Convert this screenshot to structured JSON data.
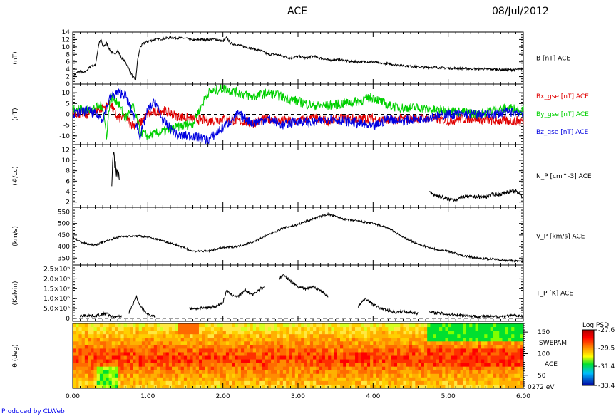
{
  "header": {
    "title": "ACE",
    "date": "08/Jul/2012"
  },
  "footer": {
    "credit": "Produced by CLWeb"
  },
  "chart_data": [
    {
      "type": "line",
      "panel": "B",
      "ylabel": "(nT)",
      "ylim": [
        0,
        14
      ],
      "yticks": [
        "0",
        "2",
        "4",
        "6",
        "8",
        "10",
        "12",
        "14"
      ],
      "xlim": [
        0,
        6
      ],
      "dashed_zero": true,
      "series": [
        {
          "name": "B [nT] ACE",
          "color": "#000000",
          "x": [
            0,
            0.05,
            0.1,
            0.15,
            0.2,
            0.25,
            0.3,
            0.35,
            0.38,
            0.4,
            0.45,
            0.5,
            0.55,
            0.6,
            0.65,
            0.7,
            0.75,
            0.8,
            0.84,
            0.86,
            0.9,
            0.95,
            1.0,
            1.1,
            1.2,
            1.3,
            1.4,
            1.5,
            1.6,
            1.7,
            1.8,
            1.9,
            2.0,
            2.05,
            2.1,
            2.2,
            2.3,
            2.4,
            2.5,
            2.6,
            2.7,
            2.8,
            2.9,
            3.0,
            3.1,
            3.2,
            3.3,
            3.4,
            3.5,
            3.6,
            3.7,
            3.8,
            3.9,
            4.0,
            4.1,
            4.2,
            4.3,
            4.4,
            4.5,
            4.6,
            4.7,
            4.8,
            4.9,
            5.0,
            5.2,
            5.4,
            5.6,
            5.8,
            5.9,
            6.0
          ],
          "y": [
            2,
            3,
            3.5,
            3,
            4,
            5,
            5,
            11,
            12,
            10,
            11,
            9,
            8,
            9,
            7,
            6,
            4,
            2,
            1,
            6,
            10,
            11,
            11.5,
            12,
            12.2,
            12.5,
            12.4,
            12.3,
            11.8,
            12,
            11.9,
            12.1,
            11.5,
            12.5,
            11,
            10.5,
            10,
            9.5,
            9,
            8,
            8,
            7.5,
            7,
            7.5,
            7,
            7.5,
            7,
            6.5,
            6.5,
            6.5,
            6,
            6,
            6,
            6,
            5.5,
            5.5,
            5.2,
            5,
            4.8,
            4.6,
            4.5,
            4.5,
            4.4,
            4.3,
            4.2,
            4.1,
            4,
            3.8,
            3.9,
            4.2
          ]
        }
      ]
    },
    {
      "type": "line",
      "panel": "B components",
      "ylabel": "(nT)",
      "ylim": [
        -14,
        14
      ],
      "yticks": [
        "-10",
        "-5",
        "0",
        "5",
        "10"
      ],
      "xlim": [
        0,
        6
      ],
      "dashed_zero": true,
      "series": [
        {
          "name": "Bx_gse [nT] ACE",
          "color": "#e00000",
          "x": [
            0,
            0.2,
            0.4,
            0.5,
            0.6,
            0.7,
            0.8,
            0.9,
            1.0,
            1.2,
            1.4,
            1.6,
            1.8,
            2.0,
            2.2,
            2.4,
            2.6,
            2.8,
            3.0,
            3.2,
            3.4,
            3.6,
            3.8,
            4.0,
            4.2,
            4.4,
            4.6,
            4.8,
            5.0,
            5.2,
            5.4,
            5.6,
            5.8,
            6.0
          ],
          "y": [
            1,
            0,
            3,
            5,
            -2,
            -1,
            -5,
            -4,
            0,
            2,
            -1,
            -2,
            -3,
            -2,
            -3,
            -4,
            -2,
            -3,
            -3,
            -2,
            -3,
            -2,
            -2,
            -2,
            -3,
            -2,
            -2,
            -2,
            -3,
            -2,
            -2,
            -3,
            -3,
            -3
          ]
        },
        {
          "name": "By_gse [nT] ACE",
          "color": "#00d000",
          "x": [
            0,
            0.2,
            0.4,
            0.45,
            0.5,
            0.6,
            0.7,
            0.8,
            0.9,
            1.0,
            1.2,
            1.4,
            1.6,
            1.8,
            2.0,
            2.2,
            2.4,
            2.6,
            2.8,
            3.0,
            3.2,
            3.4,
            3.6,
            3.8,
            4.0,
            4.2,
            4.4,
            4.6,
            4.8,
            5.0,
            5.2,
            5.4,
            5.6,
            5.8,
            6.0
          ],
          "y": [
            3,
            2,
            4,
            -10,
            8,
            6,
            -2,
            4,
            -8,
            -10,
            -8,
            -6,
            -4,
            10,
            12,
            10,
            8,
            10,
            8,
            6,
            4,
            4,
            5,
            6,
            8,
            4,
            3,
            3,
            2,
            2,
            1,
            0,
            2,
            3,
            2
          ]
        },
        {
          "name": "Bz_gse [nT] ACE",
          "color": "#0000e0",
          "x": [
            0,
            0.2,
            0.4,
            0.5,
            0.6,
            0.7,
            0.8,
            0.9,
            1.0,
            1.1,
            1.2,
            1.4,
            1.6,
            1.8,
            2.0,
            2.2,
            2.4,
            2.6,
            2.8,
            3.0,
            3.2,
            3.4,
            3.6,
            3.8,
            4.0,
            4.2,
            4.4,
            4.6,
            4.8,
            5.0,
            5.2,
            5.4,
            5.6,
            5.8,
            6.0
          ],
          "y": [
            0,
            2,
            -2,
            8,
            10,
            9,
            0,
            -10,
            2,
            6,
            -3,
            -10,
            -10,
            -12,
            -6,
            0,
            -4,
            -2,
            -5,
            -3,
            -4,
            -2,
            -3,
            -4,
            -6,
            -2,
            -3,
            -2,
            -1,
            0,
            0,
            0,
            0,
            1,
            1
          ]
        }
      ]
    },
    {
      "type": "line",
      "panel": "N_P",
      "ylabel": "(#/cc)",
      "ylim": [
        1,
        13
      ],
      "yticks": [
        "2",
        "4",
        "6",
        "8",
        "10",
        "12"
      ],
      "xlim": [
        0,
        6
      ],
      "dashed_zero": false,
      "series": [
        {
          "name": "N_P [cm^-3] ACE",
          "color": "#000000",
          "segments": [
            {
              "x": [
                0.52,
                0.53,
                0.54,
                0.55,
                0.56,
                0.57,
                0.58,
                0.59,
                0.6,
                0.61,
                0.62
              ],
              "y": [
                5,
                9,
                11,
                12,
                8,
                10,
                7,
                9,
                6,
                8,
                6
              ]
            },
            {
              "x": [
                4.75,
                4.8,
                4.9,
                5.0,
                5.1,
                5.2,
                5.3,
                5.4,
                5.5,
                5.6,
                5.7,
                5.8,
                5.9,
                6.0
              ],
              "y": [
                4,
                3.5,
                3,
                2.5,
                2.5,
                3,
                3,
                3,
                3,
                3.5,
                3.5,
                4,
                4,
                3
              ]
            }
          ]
        }
      ]
    },
    {
      "type": "line",
      "panel": "V_P",
      "ylabel": "(km/s)",
      "ylim": [
        320,
        570
      ],
      "yticks": [
        "350",
        "400",
        "450",
        "500",
        "550"
      ],
      "xlim": [
        0,
        6
      ],
      "dashed_zero": false,
      "series": [
        {
          "name": "V_P [km/s] ACE",
          "color": "#000000",
          "x": [
            0,
            0.1,
            0.2,
            0.3,
            0.4,
            0.5,
            0.6,
            0.7,
            0.8,
            0.9,
            1.0,
            1.2,
            1.4,
            1.6,
            1.8,
            2.0,
            2.2,
            2.4,
            2.6,
            2.8,
            3.0,
            3.2,
            3.4,
            3.6,
            3.8,
            4.0,
            4.2,
            4.4,
            4.6,
            4.8,
            5.0,
            5.2,
            5.4,
            5.6,
            5.8,
            6.0
          ],
          "y": [
            440,
            420,
            410,
            405,
            420,
            430,
            440,
            445,
            445,
            445,
            440,
            425,
            405,
            380,
            380,
            395,
            400,
            420,
            450,
            480,
            495,
            520,
            540,
            520,
            510,
            500,
            480,
            440,
            410,
            390,
            380,
            360,
            350,
            345,
            340,
            335
          ]
        }
      ]
    },
    {
      "type": "line",
      "panel": "T_P",
      "ylabel": "(Kelvin)",
      "ylim": [
        -150000,
        2700000
      ],
      "yticks": [
        "0",
        "5.0×10⁵",
        "1.0×10⁶",
        "1.5×10⁶",
        "2.0×10⁶",
        "2.5×10⁶"
      ],
      "xlim": [
        0,
        6
      ],
      "dashed_zero": true,
      "series": [
        {
          "name": "T_P [K] ACE",
          "color": "#000000",
          "segments": [
            {
              "x": [
                0.1,
                0.2,
                0.3,
                0.4,
                0.45,
                0.5,
                0.6,
                0.65
              ],
              "y": [
                120000,
                150000,
                120000,
                200000,
                250000,
                100000,
                80000,
                100000
              ]
            },
            {
              "x": [
                0.75,
                0.8,
                0.85,
                0.9,
                1.0,
                1.1
              ],
              "y": [
                300000,
                700000,
                1100000,
                600000,
                200000,
                100000
              ]
            },
            {
              "x": [
                1.55,
                1.7,
                1.9,
                2.0,
                2.05,
                2.1,
                2.2,
                2.3,
                2.4,
                2.5,
                2.55
              ],
              "y": [
                500000,
                500000,
                600000,
                800000,
                1400000,
                1200000,
                1100000,
                1400000,
                1200000,
                1500000,
                1600000
              ]
            },
            {
              "x": [
                2.75,
                2.8,
                2.9,
                3.0,
                3.1,
                3.2,
                3.3,
                3.4
              ],
              "y": [
                2000000,
                2200000,
                1900000,
                1600000,
                1500000,
                1600000,
                1400000,
                1100000
              ]
            },
            {
              "x": [
                3.8,
                3.9,
                4.0,
                4.1,
                4.2,
                4.3,
                4.4,
                4.5,
                4.6
              ],
              "y": [
                600000,
                1000000,
                700000,
                500000,
                400000,
                300000,
                350000,
                300000,
                250000
              ]
            },
            {
              "x": [
                4.75,
                4.9,
                5.0,
                5.2,
                5.4,
                5.6,
                5.8,
                5.9,
                6.0
              ],
              "y": [
                300000,
                250000,
                200000,
                150000,
                100000,
                80000,
                120000,
                150000,
                100000
              ]
            }
          ]
        }
      ]
    },
    {
      "type": "heatmap",
      "panel": "SWEPAM",
      "ylabel": "θ (deg)",
      "ylim": [
        20,
        170
      ],
      "yticks": [
        "150",
        "100",
        "50"
      ],
      "right_labels": [
        "SWEPAM",
        "ACE",
        "0272 eV"
      ],
      "colorbar": {
        "title": "Log PSD",
        "ticks": [
          "-27.6",
          "-29.5",
          "-31.4",
          "-33.4"
        ],
        "range": [
          -33.4,
          -27.6
        ]
      },
      "xlim": [
        0,
        6
      ]
    }
  ],
  "x_axis": {
    "ticks": [
      "0.00",
      "1.00",
      "2.00",
      "3.00",
      "4.00",
      "5.00",
      "6.00"
    ]
  }
}
